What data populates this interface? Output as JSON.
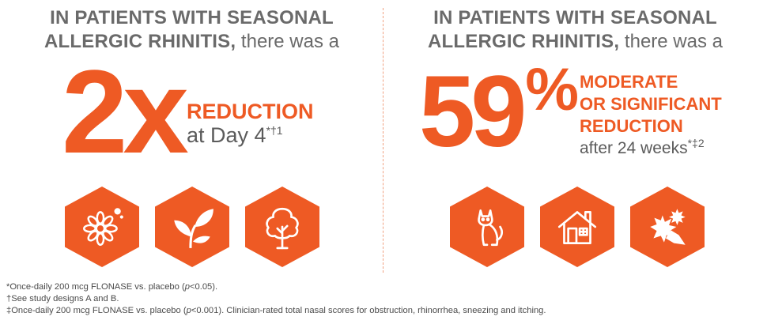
{
  "left": {
    "heading_bold_1": "IN PATIENTS WITH SEASONAL",
    "heading_bold_2": "ALLERGIC RHINITIS,",
    "heading_light": "there was a",
    "stat": "2x",
    "callout_orange": "REDUCTION",
    "callout_grey": "at Day 4",
    "callout_sup": "*†1",
    "icons": [
      "flower-icon",
      "plant-icon",
      "tree-icon"
    ]
  },
  "right": {
    "heading_bold_1": "IN PATIENTS WITH SEASONAL",
    "heading_bold_2": "ALLERGIC RHINITIS,",
    "heading_light": "there was a",
    "stat": "59",
    "stat_sup": "%",
    "callout_orange_1": "MODERATE",
    "callout_orange_2": "OR SIGNIFICANT",
    "callout_orange_3": "REDUCTION",
    "callout_grey": "after 24 weeks",
    "callout_sup": "*‡2",
    "icons": [
      "cat-icon",
      "house-icon",
      "mold-icon"
    ]
  },
  "footnotes": {
    "line1_a": "*Once-daily 200 mcg FLONASE vs. placebo (",
    "line1_p": "p",
    "line1_b": "<0.05).",
    "line2": "†See study designs A and B.",
    "line3_a": "‡Once-daily 200 mcg FLONASE vs. placebo (",
    "line3_p": "p",
    "line3_b": "<0.001). Clinician-rated total nasal scores for obstruction, rhinorrhea, sneezing and itching."
  },
  "colors": {
    "accent": "#ee5a24",
    "text": "#5b5b5b"
  }
}
